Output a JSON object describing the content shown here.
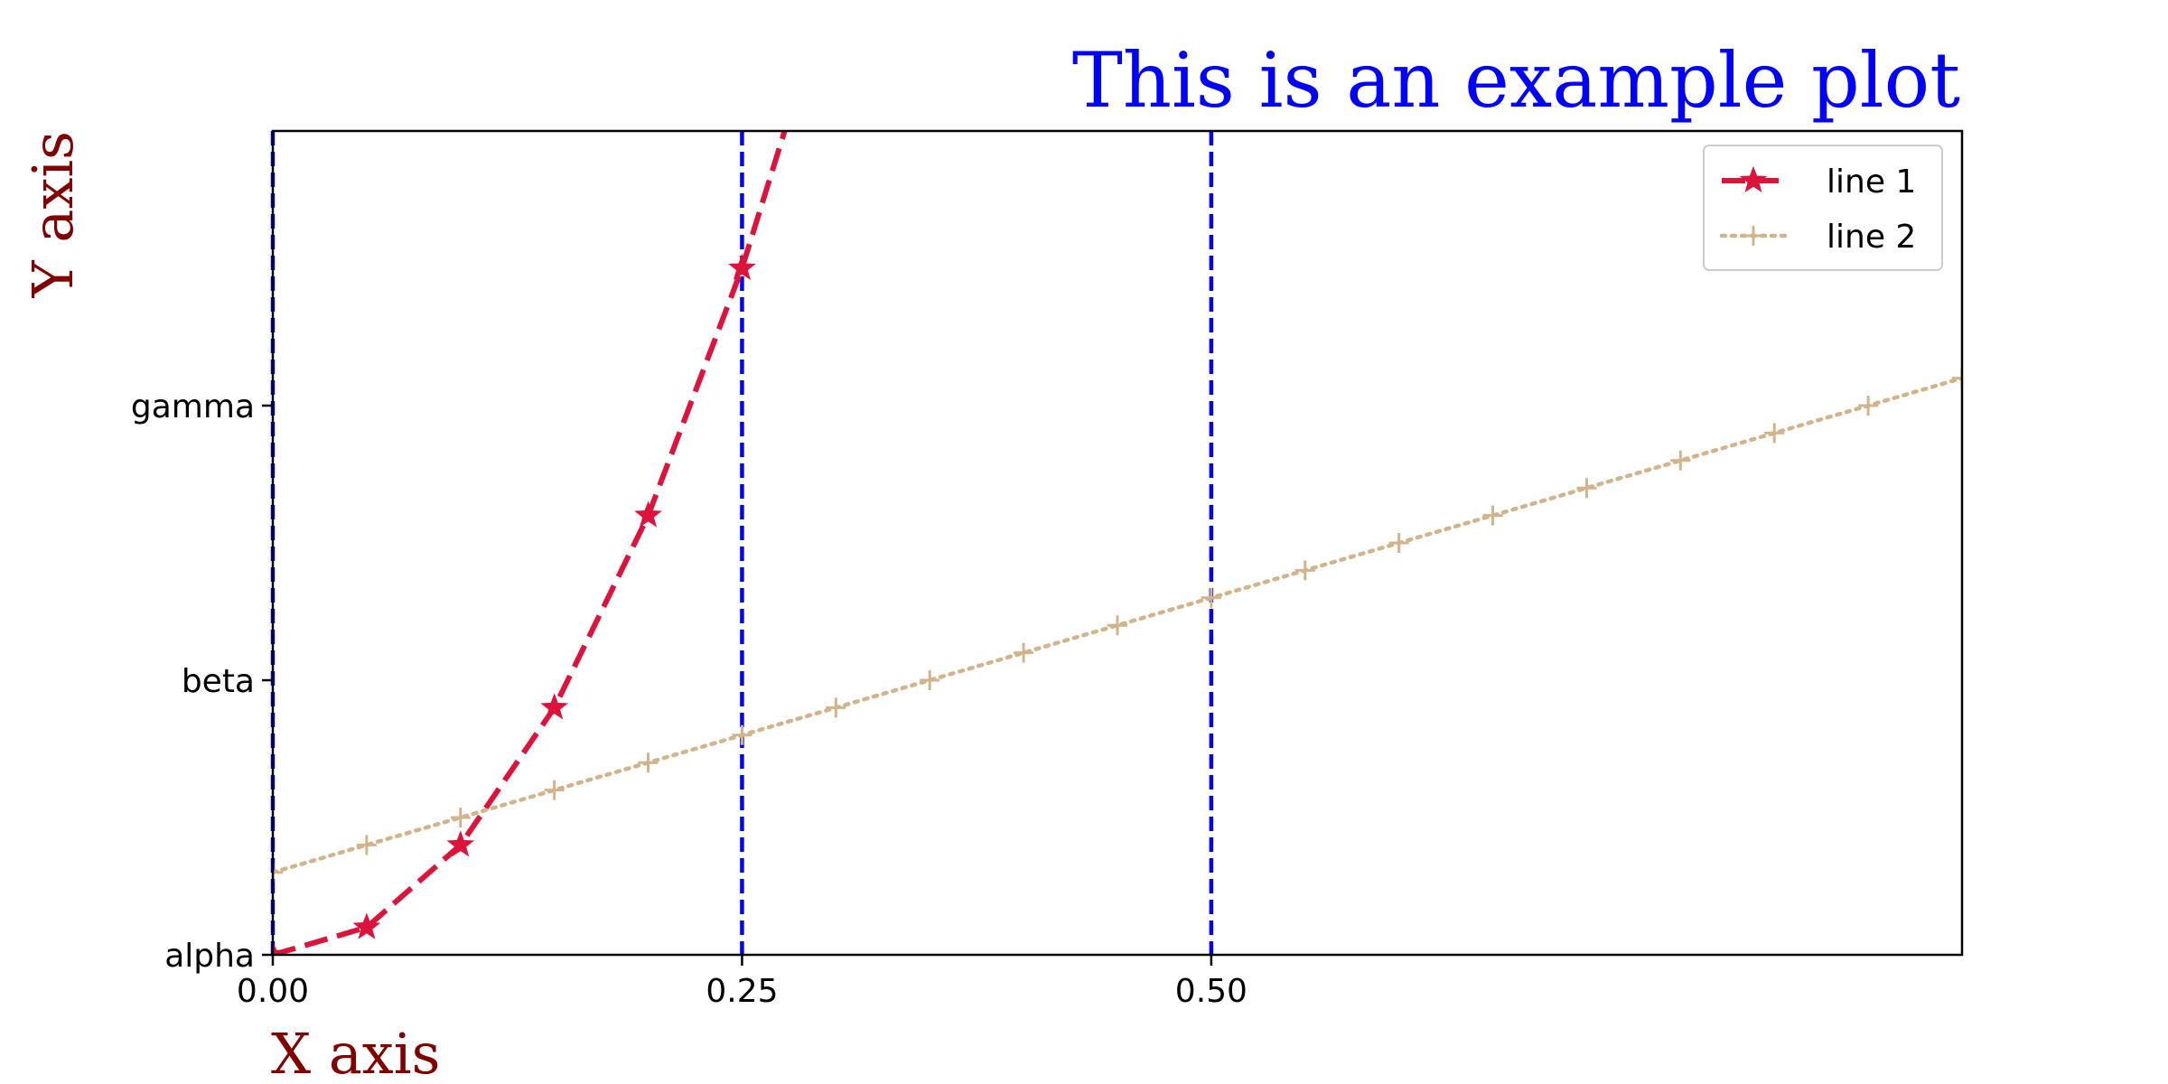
{
  "chart_data": {
    "type": "line",
    "title": "This is an example plot",
    "xlabel": "X axis",
    "ylabel": "Y axis",
    "xlim": [
      0,
      0.9
    ],
    "ylim": [
      0,
      3
    ],
    "x_ticks": [
      0.0,
      0.25,
      0.5
    ],
    "x_tick_labels": [
      "0.00",
      "0.25",
      "0.50"
    ],
    "y_ticks": [
      0,
      1,
      2
    ],
    "y_tick_labels": [
      "alpha",
      "beta",
      "gamma"
    ],
    "vertical_lines": [
      0,
      0.25,
      0.5
    ],
    "vertical_line_color": "#0000ff",
    "legend": {
      "position": "top-right",
      "entries": [
        "line 1",
        "line 2"
      ]
    },
    "grid": false,
    "series": [
      {
        "name": "line 1",
        "color": "#dc143c",
        "linestyle": "dashed",
        "marker": "star",
        "x": [
          0.0,
          0.05,
          0.1,
          0.15,
          0.2,
          0.25,
          0.3
        ],
        "y": [
          0.0,
          0.1,
          0.4,
          0.9,
          1.6,
          2.5,
          3.6
        ]
      },
      {
        "name": "line 2",
        "color": "#d2b48c",
        "linestyle": "dotted",
        "marker": "plus",
        "x": [
          0.0,
          0.05,
          0.1,
          0.15,
          0.2,
          0.25,
          0.3,
          0.35,
          0.4,
          0.45,
          0.5,
          0.55,
          0.6,
          0.65,
          0.7,
          0.75,
          0.8,
          0.85,
          0.9
        ],
        "y": [
          0.3,
          0.4,
          0.5,
          0.6,
          0.7,
          0.8,
          0.9,
          1.0,
          1.1,
          1.2,
          1.3,
          1.4,
          1.5,
          1.6,
          1.7,
          1.8,
          1.9,
          2.0,
          2.1
        ]
      }
    ]
  }
}
